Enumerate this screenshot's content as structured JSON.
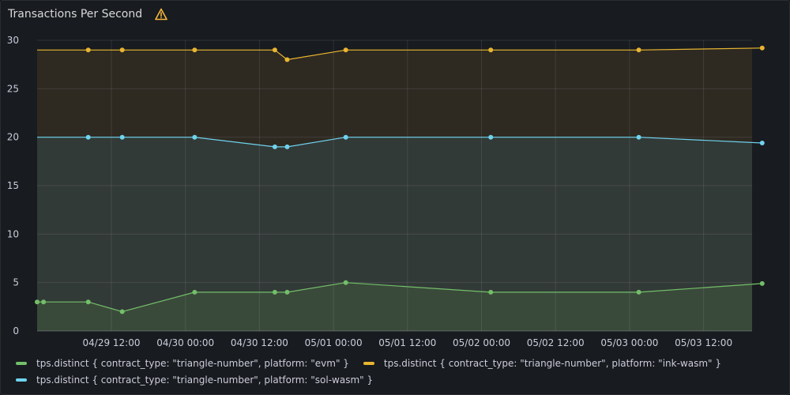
{
  "panel": {
    "title": "Transactions Per Second",
    "warning_icon": "warning-triangle-icon",
    "warning_color": "#f5b73d"
  },
  "chart_data": {
    "type": "line",
    "title": "Transactions Per Second",
    "xlabel": "",
    "ylabel": "",
    "ylim": [
      0,
      30
    ],
    "y_ticks": [
      0,
      5,
      10,
      15,
      20,
      25,
      30
    ],
    "x_ticks": [
      "04/29 12:00",
      "04/30 00:00",
      "04/30 12:00",
      "05/01 00:00",
      "05/01 12:00",
      "05/02 00:00",
      "05/02 12:00",
      "05/03 00:00",
      "05/03 12:00"
    ],
    "grid": true,
    "legend_position": "bottom",
    "series": [
      {
        "name": "tps.distinct { contract_type: \"triangle-number\", platform: \"evm\" }",
        "color": "#73bf69",
        "fill": "#3a4a3a",
        "x": [
          "04/29 01:00",
          "04/29 08:15",
          "04/29 13:45",
          "04/30 01:30",
          "04/30 14:30",
          "04/30 16:30",
          "05/01 02:00",
          "05/02 01:30",
          "05/03 01:30",
          "05/03 21:30"
        ],
        "y": [
          3,
          3,
          2,
          4,
          4,
          4,
          5,
          4,
          4,
          4.9
        ]
      },
      {
        "name": "tps.distinct { contract_type: \"triangle-number\", platform: \"ink-wasm\" }",
        "color": "#fade2a",
        "line_color": "#e8b530",
        "fill": "#2e2a22",
        "x": [
          "04/29 08:15",
          "04/29 13:45",
          "04/30 01:30",
          "04/30 14:30",
          "04/30 16:30",
          "05/01 02:00",
          "05/02 01:30",
          "05/03 01:30",
          "05/03 21:30"
        ],
        "y": [
          29,
          29,
          29,
          29,
          28,
          29,
          29,
          29,
          29.2
        ]
      },
      {
        "name": "tps.distinct { contract_type: \"triangle-number\", platform: \"sol-wasm\" }",
        "color": "#8ab8ff",
        "line_color": "#6fd3ee",
        "fill": "#323a37",
        "x": [
          "04/29 08:15",
          "04/29 13:45",
          "04/30 01:30",
          "04/30 14:30",
          "04/30 16:30",
          "05/01 02:00",
          "05/02 01:30",
          "05/03 01:30",
          "05/03 21:30"
        ],
        "y": [
          20,
          20,
          20,
          19,
          19,
          20,
          20,
          20,
          19.4
        ]
      }
    ]
  },
  "legend": {
    "rows": [
      [
        {
          "label": "tps.distinct { contract_type: \"triangle-number\", platform: \"evm\" }",
          "color": "#73bf69"
        },
        {
          "label": "tps.distinct { contract_type: \"triangle-number\", platform: \"ink-wasm\" }",
          "color": "#e8b530"
        }
      ],
      [
        {
          "label": "tps.distinct { contract_type: \"triangle-number\", platform: \"sol-wasm\" }",
          "color": "#6fd3ee"
        }
      ]
    ]
  }
}
